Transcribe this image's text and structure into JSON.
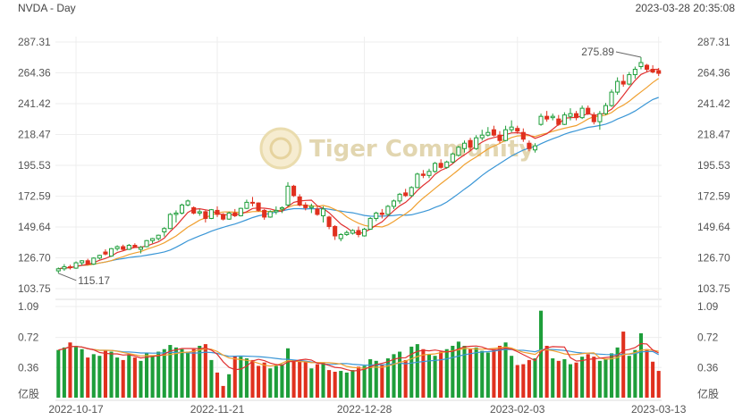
{
  "header": {
    "title": "NVDA - Day",
    "timestamp": "2023-03-28 20:35:08"
  },
  "watermark": {
    "text": "Tiger Community"
  },
  "colors": {
    "up": "#1e9e3a",
    "down": "#e0301e",
    "ma5": "#e03030",
    "ma10": "#f0a030",
    "ma20": "#3a96d6",
    "grid": "#eeeeee"
  },
  "chart_data": {
    "type": "candlestick",
    "price_ticks": [
      "287.31",
      "264.36",
      "241.42",
      "218.47",
      "195.53",
      "172.59",
      "149.64",
      "126.70",
      "103.75"
    ],
    "price_range": [
      103.75,
      287.31
    ],
    "volume_ticks": [
      "1.09",
      "0.72",
      "0.36"
    ],
    "volume_unit": "亿股",
    "volume_range": [
      0,
      1.09
    ],
    "x_ticks": [
      "2022-10-17",
      "2022-11-21",
      "2022-12-28",
      "2023-02-03",
      "2023-03-13"
    ],
    "annotations": {
      "high": "275.89",
      "low": "115.17"
    },
    "candles": [
      [
        117.0,
        119.5,
        115.2,
        118.5,
        0.57
      ],
      [
        118.5,
        122.0,
        117.0,
        120.0,
        0.6
      ],
      [
        120.0,
        121.5,
        118.0,
        119.5,
        0.66
      ],
      [
        119.0,
        124.0,
        118.5,
        123.0,
        0.62
      ],
      [
        123.0,
        125.0,
        121.0,
        124.5,
        0.58
      ],
      [
        124.5,
        126.0,
        121.5,
        122.0,
        0.48
      ],
      [
        122.0,
        127.0,
        121.5,
        126.5,
        0.52
      ],
      [
        126.5,
        129.0,
        125.5,
        128.5,
        0.5
      ],
      [
        131.0,
        133.0,
        128.5,
        129.5,
        0.57
      ],
      [
        128.0,
        134.0,
        127.5,
        133.5,
        0.55
      ],
      [
        133.5,
        136.0,
        132.0,
        135.0,
        0.48
      ],
      [
        135.0,
        136.5,
        132.0,
        133.0,
        0.45
      ],
      [
        133.0,
        137.0,
        132.5,
        136.0,
        0.52
      ],
      [
        136.0,
        137.5,
        134.0,
        134.5,
        0.48
      ],
      [
        133.0,
        135.5,
        130.0,
        134.5,
        0.44
      ],
      [
        135.0,
        140.0,
        134.5,
        139.5,
        0.53
      ],
      [
        139.5,
        141.5,
        137.5,
        141.0,
        0.5
      ],
      [
        141.0,
        144.0,
        139.5,
        143.5,
        0.55
      ],
      [
        146.0,
        149.5,
        142.5,
        148.5,
        0.58
      ],
      [
        148.5,
        160.0,
        148.0,
        159.0,
        0.63
      ],
      [
        159.0,
        162.0,
        153.0,
        160.0,
        0.6
      ],
      [
        160.0,
        167.0,
        159.0,
        166.0,
        0.58
      ],
      [
        166.0,
        170.0,
        165.0,
        169.0,
        0.55
      ],
      [
        164.0,
        165.0,
        159.0,
        160.0,
        0.58
      ],
      [
        160.0,
        163.0,
        158.0,
        161.0,
        0.62
      ],
      [
        161.0,
        162.0,
        153.0,
        156.0,
        0.64
      ],
      [
        156.0,
        163.0,
        155.5,
        162.5,
        0.45
      ],
      [
        162.0,
        165.0,
        157.0,
        159.0,
        0.3
      ],
      [
        159.0,
        160.0,
        154.5,
        155.5,
        0.14
      ],
      [
        155.5,
        161.0,
        155.0,
        160.0,
        0.28
      ],
      [
        160.0,
        163.0,
        157.0,
        158.0,
        0.5
      ],
      [
        158.0,
        164.0,
        157.5,
        163.5,
        0.49
      ],
      [
        163.5,
        170.0,
        163.0,
        168.0,
        0.47
      ],
      [
        168.0,
        172.0,
        165.0,
        167.5,
        0.45
      ],
      [
        167.5,
        168.0,
        161.0,
        162.0,
        0.38
      ],
      [
        162.0,
        163.0,
        155.0,
        157.0,
        0.42
      ],
      [
        157.0,
        162.0,
        156.5,
        161.0,
        0.35
      ],
      [
        161.0,
        165.0,
        159.0,
        162.0,
        0.38
      ],
      [
        163.0,
        165.0,
        160.0,
        164.0,
        0.4
      ],
      [
        166.0,
        183.0,
        165.0,
        180.0,
        0.59
      ],
      [
        180.0,
        181.0,
        172.0,
        173.0,
        0.45
      ],
      [
        172.0,
        174.0,
        165.0,
        166.0,
        0.43
      ],
      [
        166.0,
        168.0,
        162.0,
        164.0,
        0.43
      ],
      [
        164.0,
        167.0,
        160.0,
        165.0,
        0.35
      ],
      [
        163.0,
        165.0,
        158.0,
        159.0,
        0.4
      ],
      [
        158.0,
        165.0,
        153.0,
        163.0,
        0.42
      ],
      [
        157.0,
        158.0,
        148.0,
        150.0,
        0.33
      ],
      [
        150.0,
        151.0,
        140.0,
        143.0,
        0.31
      ],
      [
        141.0,
        145.0,
        139.0,
        144.0,
        0.32
      ],
      [
        144.0,
        147.0,
        143.0,
        145.5,
        0.3
      ],
      [
        145.0,
        148.0,
        144.0,
        147.0,
        0.33
      ],
      [
        147.0,
        150.0,
        142.0,
        144.0,
        0.37
      ],
      [
        143.0,
        149.0,
        142.5,
        148.0,
        0.38
      ],
      [
        148.0,
        157.0,
        147.5,
        156.0,
        0.46
      ],
      [
        156.0,
        161.0,
        154.0,
        160.0,
        0.44
      ],
      [
        160.0,
        163.0,
        156.0,
        159.0,
        0.4
      ],
      [
        159.0,
        166.0,
        158.0,
        165.0,
        0.47
      ],
      [
        165.0,
        170.0,
        163.0,
        169.0,
        0.52
      ],
      [
        169.0,
        175.0,
        167.0,
        174.0,
        0.55
      ],
      [
        175.0,
        178.0,
        172.0,
        173.0,
        0.45
      ],
      [
        173.0,
        180.0,
        172.0,
        179.0,
        0.61
      ],
      [
        179.0,
        190.0,
        178.5,
        189.0,
        0.64
      ],
      [
        189.0,
        192.0,
        186.0,
        188.0,
        0.58
      ],
      [
        188.0,
        193.0,
        186.0,
        191.0,
        0.52
      ],
      [
        191.0,
        198.0,
        190.0,
        197.0,
        0.5
      ],
      [
        197.0,
        200.0,
        193.0,
        194.0,
        0.55
      ],
      [
        194.0,
        199.0,
        193.0,
        198.0,
        0.58
      ],
      [
        198.0,
        205.0,
        197.0,
        204.0,
        0.62
      ],
      [
        203.0,
        210.0,
        202.0,
        209.0,
        0.67
      ],
      [
        208.0,
        214.0,
        205.0,
        212.0,
        0.62
      ],
      [
        214.0,
        216.0,
        206.0,
        209.0,
        0.58
      ],
      [
        208.0,
        218.0,
        207.0,
        216.0,
        0.6
      ],
      [
        216.0,
        222.0,
        214.0,
        218.0,
        0.56
      ],
      [
        218.0,
        224.0,
        217.0,
        220.0,
        0.54
      ],
      [
        222.0,
        225.0,
        217.0,
        218.0,
        0.58
      ],
      [
        218.0,
        221.0,
        212.0,
        214.0,
        0.62
      ],
      [
        214.0,
        225.0,
        213.5,
        222.0,
        0.66
      ],
      [
        222.0,
        229.0,
        220.0,
        224.0,
        0.5
      ],
      [
        223.0,
        225.0,
        219.0,
        221.0,
        0.39
      ],
      [
        220.0,
        223.0,
        213.0,
        215.0,
        0.4
      ],
      [
        212.0,
        214.0,
        206.0,
        208.0,
        0.45
      ],
      [
        207.0,
        212.0,
        205.0,
        210.0,
        0.47
      ],
      [
        226.0,
        234.0,
        225.0,
        232.0,
        1.04
      ],
      [
        232.0,
        236.0,
        228.0,
        230.0,
        0.62
      ],
      [
        231.0,
        234.0,
        229.0,
        232.0,
        0.47
      ],
      [
        230.0,
        233.0,
        225.0,
        226.0,
        0.44
      ],
      [
        226.0,
        235.0,
        225.5,
        233.0,
        0.46
      ],
      [
        232.0,
        238.0,
        229.0,
        234.0,
        0.4
      ],
      [
        234.0,
        236.0,
        229.0,
        231.0,
        0.42
      ],
      [
        231.0,
        240.0,
        230.0,
        238.0,
        0.49
      ],
      [
        238.0,
        240.0,
        233.0,
        234.0,
        0.52
      ],
      [
        233.0,
        235.0,
        226.0,
        228.0,
        0.49
      ],
      [
        228.0,
        236.0,
        222.0,
        234.0,
        0.44
      ],
      [
        234.0,
        242.0,
        233.0,
        240.0,
        0.46
      ],
      [
        240.0,
        252.0,
        239.0,
        250.0,
        0.53
      ],
      [
        250.0,
        261.0,
        248.0,
        258.0,
        0.6
      ],
      [
        258.0,
        263.0,
        254.0,
        256.0,
        0.79
      ],
      [
        256.0,
        265.0,
        255.0,
        263.0,
        0.5
      ],
      [
        263.0,
        269.0,
        260.0,
        267.0,
        0.57
      ],
      [
        269.0,
        276.0,
        267.0,
        272.0,
        0.77
      ],
      [
        270.0,
        271.0,
        265.0,
        267.0,
        0.58
      ],
      [
        267.0,
        270.0,
        264.0,
        265.0,
        0.43
      ],
      [
        266.0,
        268.0,
        262.0,
        264.0,
        0.32
      ]
    ]
  }
}
